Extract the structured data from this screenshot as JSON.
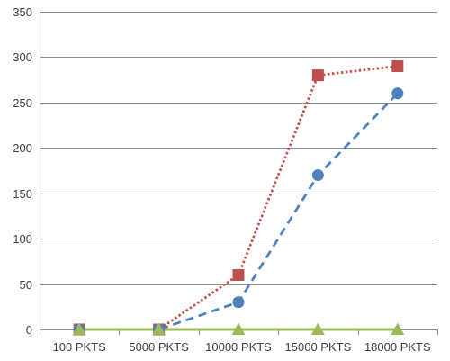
{
  "chart_data": {
    "type": "line",
    "title": "",
    "xlabel": "",
    "ylabel": "",
    "categories": [
      "100 PKTS",
      "5000 PKTS",
      "10000 PKTS",
      "15000 PKTS",
      "18000 PKTS"
    ],
    "ylim": [
      0,
      350
    ],
    "y_ticks": [
      0,
      50,
      100,
      150,
      200,
      250,
      300,
      350
    ],
    "grid": "horizontal",
    "legend": "none",
    "series": [
      {
        "values": [
          0,
          0,
          60,
          280,
          290
        ],
        "color": "#c0504d",
        "line_style": "dotted",
        "marker": "square"
      },
      {
        "values": [
          0,
          0,
          30,
          170,
          260
        ],
        "color": "#4f81bd",
        "line_style": "dashed",
        "marker": "circle"
      },
      {
        "values": [
          0,
          0,
          0,
          0,
          0
        ],
        "color": "#9bbb59",
        "line_style": "solid",
        "marker": "triangle"
      }
    ]
  }
}
